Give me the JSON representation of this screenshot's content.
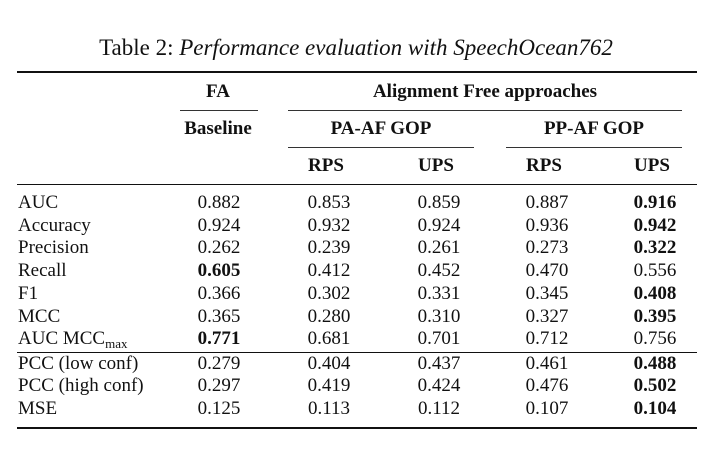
{
  "caption": {
    "label": "Table 2:",
    "text": "Performance evaluation with SpeechOcean762"
  },
  "header": {
    "fa": "FA",
    "baseline": "Baseline",
    "af": "Alignment Free approaches",
    "pa_af_gop": "PA-AF GOP",
    "pp_af_gop": "PP-AF GOP",
    "rps": "RPS",
    "ups": "UPS"
  },
  "rows": [
    {
      "metric": "AUC",
      "values": [
        "0.882",
        "0.853",
        "0.859",
        "0.887",
        "0.916"
      ],
      "bold": [
        4
      ]
    },
    {
      "metric": "Accuracy",
      "values": [
        "0.924",
        "0.932",
        "0.924",
        "0.936",
        "0.942"
      ],
      "bold": [
        4
      ]
    },
    {
      "metric": "Precision",
      "values": [
        "0.262",
        "0.239",
        "0.261",
        "0.273",
        "0.322"
      ],
      "bold": [
        4
      ]
    },
    {
      "metric": "Recall",
      "values": [
        "0.605",
        "0.412",
        "0.452",
        "0.470",
        "0.556"
      ],
      "bold": [
        0
      ]
    },
    {
      "metric": "F1",
      "values": [
        "0.366",
        "0.302",
        "0.331",
        "0.345",
        "0.408"
      ],
      "bold": [
        4
      ]
    },
    {
      "metric": "MCC",
      "values": [
        "0.365",
        "0.280",
        "0.310",
        "0.327",
        "0.395"
      ],
      "bold": [
        4
      ]
    },
    {
      "metric": "AUC MCC",
      "metric_sub": "max",
      "values": [
        "0.771",
        "0.681",
        "0.701",
        "0.712",
        "0.756"
      ],
      "bold": [
        0
      ]
    },
    {
      "metric": "PCC (low conf)",
      "values": [
        "0.279",
        "0.404",
        "0.437",
        "0.461",
        "0.488"
      ],
      "bold": [
        4
      ]
    },
    {
      "metric": "PCC (high conf)",
      "values": [
        "0.297",
        "0.419",
        "0.424",
        "0.476",
        "0.502"
      ],
      "bold": [
        4
      ]
    },
    {
      "metric": "MSE",
      "values": [
        "0.125",
        "0.113",
        "0.112",
        "0.107",
        "0.104"
      ],
      "bold": [
        4
      ]
    }
  ]
}
